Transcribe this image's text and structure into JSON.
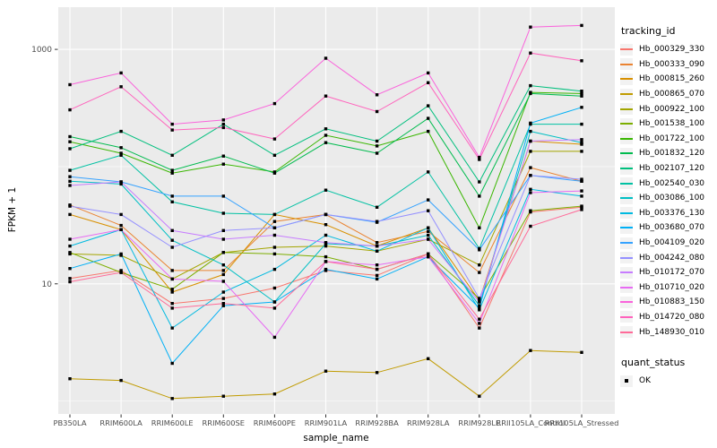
{
  "chart_data": {
    "type": "line",
    "title": "",
    "xlabel": "sample_name",
    "ylabel": "FPKM + 1",
    "y_scale": "log10",
    "ylim": [
      0.78,
      2290
    ],
    "y_major_breaks": [
      10,
      1000
    ],
    "y_minor_breaks": [
      1,
      100
    ],
    "y_tick_labels": [
      "10",
      "1000"
    ],
    "grid": true,
    "panel_bg": "#EBEBEB",
    "grid_color": "#FFFFFF",
    "axis_text_color": "#4D4D4D",
    "point_marker": "black-square",
    "legend": {
      "title": "tracking_id",
      "position": "right"
    },
    "quant_legend": {
      "title": "quant_status",
      "items": [
        {
          "label": "OK",
          "marker": "black-square",
          "color": "#000000"
        }
      ]
    },
    "categories": [
      "PB350LA",
      "RRIM600LA",
      "RRIM600LE",
      "RRIM600SE",
      "RRIM600PE",
      "RRIM901LA",
      "RRIM928BA",
      "RRIM928LA",
      "RRIM928LE",
      "RRII105LA_Control",
      "RRII105LA_Stressed"
    ],
    "series": [
      {
        "name": "Hb_000329_330",
        "color": "#F8766D",
        "values": [
          11.1,
          13,
          6.8,
          7.5,
          9.2,
          13,
          11.8,
          18,
          4.2,
          41,
          45
        ]
      },
      {
        "name": "Hb_000333_090",
        "color": "#EA8331",
        "values": [
          47,
          31.5,
          13,
          13,
          34,
          39,
          22.5,
          28,
          12.5,
          98,
          75
        ]
      },
      {
        "name": "Hb_000815_260",
        "color": "#D89000",
        "values": [
          39,
          29,
          8.5,
          12,
          39,
          32,
          21,
          30,
          7.2,
          165,
          155
        ]
      },
      {
        "name": "Hb_000865_070",
        "color": "#C09B00",
        "values": [
          1.55,
          1.5,
          1.05,
          1.1,
          1.15,
          1.8,
          1.75,
          2.3,
          1.1,
          2.7,
          2.6
        ]
      },
      {
        "name": "Hb_000922_100",
        "color": "#A3A500",
        "values": [
          18,
          17.5,
          11,
          18.5,
          20.5,
          21,
          19,
          24,
          14.5,
          135,
          135
        ]
      },
      {
        "name": "Hb_001538_100",
        "color": "#7CAE00",
        "values": [
          18.5,
          12.5,
          9,
          18.5,
          18,
          17,
          13.3,
          18,
          7.5,
          42,
          46
        ]
      },
      {
        "name": "Hb_001722_100",
        "color": "#39B600",
        "values": [
          163,
          130,
          88,
          105,
          90,
          185,
          150,
          200,
          30,
          430,
          420
        ]
      },
      {
        "name": "Hb_001832_120",
        "color": "#00BB4E",
        "values": [
          180,
          145,
          93,
          123,
          88,
          160,
          130,
          258,
          56,
          420,
          400
        ]
      },
      {
        "name": "Hb_002107_120",
        "color": "#00BF7D",
        "values": [
          142,
          200,
          125,
          230,
          125,
          210,
          165,
          330,
          74,
          490,
          440
        ]
      },
      {
        "name": "Hb_002540_030",
        "color": "#00C1A3",
        "values": [
          93,
          125,
          50,
          40,
          39,
          63,
          45,
          90,
          20,
          230,
          230
        ]
      },
      {
        "name": "Hb_003086_100",
        "color": "#00BFC4",
        "values": [
          75,
          71,
          23.5,
          14.5,
          7,
          22,
          21,
          26,
          6.5,
          200,
          160
        ]
      },
      {
        "name": "Hb_003376_130",
        "color": "#00BAE0",
        "values": [
          21,
          29,
          4.2,
          8.5,
          13.3,
          26,
          19,
          30,
          6,
          64,
          56
        ]
      },
      {
        "name": "Hb_003680_070",
        "color": "#00B0F6",
        "values": [
          13.5,
          18,
          2.1,
          6.5,
          7,
          13.3,
          11,
          17,
          6.2,
          235,
          320
        ]
      },
      {
        "name": "Hb_004109_020",
        "color": "#35A2FF",
        "values": [
          82,
          74,
          56,
          56,
          30,
          39,
          33.5,
          52,
          19.5,
          84,
          75
        ]
      },
      {
        "name": "Hb_004242_080",
        "color": "#9590FF",
        "values": [
          46,
          39,
          20.5,
          28.5,
          30,
          39,
          34,
          42,
          7.5,
          84,
          78
        ]
      },
      {
        "name": "Hb_010172_070",
        "color": "#C77CFF",
        "values": [
          69,
          74,
          28.5,
          24,
          26,
          22.5,
          21,
          24,
          7,
          165,
          170
        ]
      },
      {
        "name": "Hb_010710_020",
        "color": "#E76BF3",
        "values": [
          24,
          29,
          11,
          10.5,
          3.5,
          15.5,
          14.5,
          17,
          4.6,
          60,
          62
        ]
      },
      {
        "name": "Hb_010883_150",
        "color": "#FA62DB",
        "values": [
          500,
          630,
          230,
          250,
          345,
          840,
          410,
          630,
          120,
          1550,
          1600
        ]
      },
      {
        "name": "Hb_014720_080",
        "color": "#FF62BC",
        "values": [
          305,
          480,
          205,
          215,
          172,
          400,
          295,
          520,
          115,
          930,
          800
        ]
      },
      {
        "name": "Hb_148930_010",
        "color": "#FF6A98",
        "values": [
          10.4,
          12.5,
          6.2,
          6.8,
          6.2,
          15.5,
          13.3,
          18,
          5,
          31,
          43
        ]
      }
    ]
  }
}
